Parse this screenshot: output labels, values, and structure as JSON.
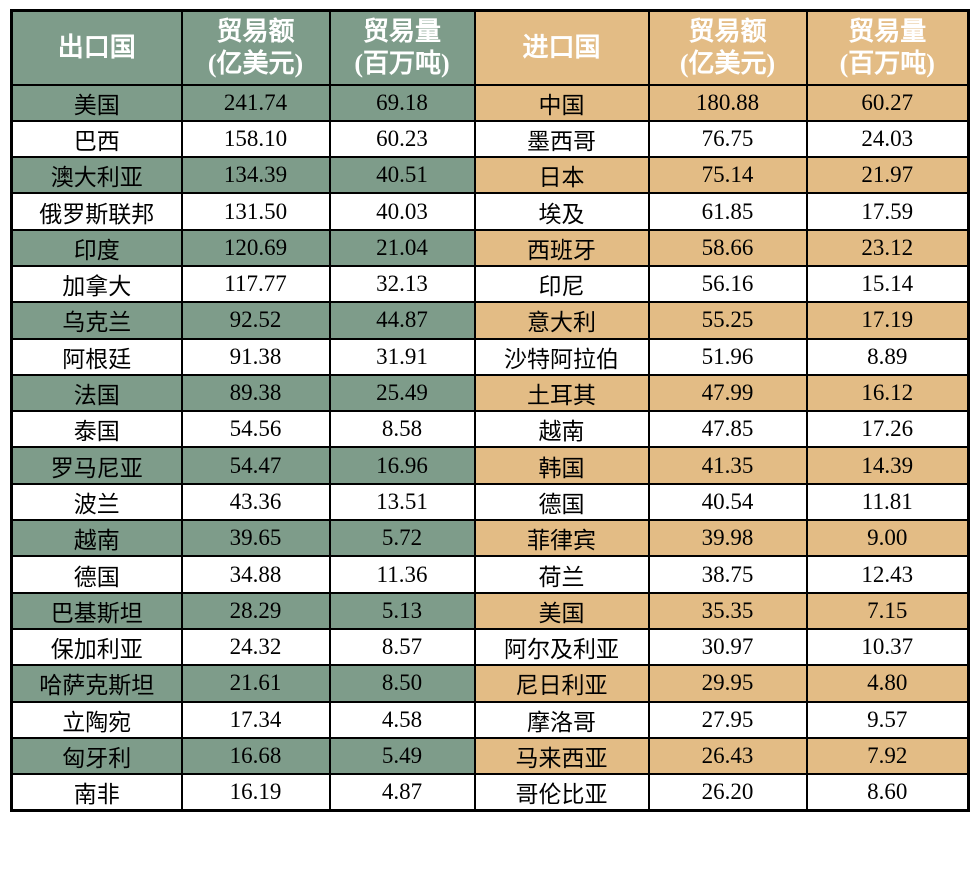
{
  "colors": {
    "green_bg": "#7E9C8A",
    "tan_bg": "#E3BC85",
    "border": "#000000",
    "header_text": "#FFFFFF",
    "body_text": "#000000",
    "page_bg": "#FFFFFF"
  },
  "header": {
    "export_country": "出口国",
    "export_value": "贸易额\n(亿美元)",
    "export_volume": "贸易量\n(百万吨)",
    "import_country": "进口国",
    "import_value": "贸易额\n(亿美元)",
    "import_volume": "贸易量\n(百万吨)"
  },
  "chart_data": {
    "type": "table",
    "columns": [
      "出口国",
      "贸易额(亿美元)",
      "贸易量(百万吨)",
      "进口国",
      "贸易额(亿美元)",
      "贸易量(百万吨)"
    ],
    "rows": [
      [
        "美国",
        "241.74",
        "69.18",
        "中国",
        "180.88",
        "60.27"
      ],
      [
        "巴西",
        "158.10",
        "60.23",
        "墨西哥",
        "76.75",
        "24.03"
      ],
      [
        "澳大利亚",
        "134.39",
        "40.51",
        "日本",
        "75.14",
        "21.97"
      ],
      [
        "俄罗斯联邦",
        "131.50",
        "40.03",
        "埃及",
        "61.85",
        "17.59"
      ],
      [
        "印度",
        "120.69",
        "21.04",
        "西班牙",
        "58.66",
        "23.12"
      ],
      [
        "加拿大",
        "117.77",
        "32.13",
        "印尼",
        "56.16",
        "15.14"
      ],
      [
        "乌克兰",
        "92.52",
        "44.87",
        "意大利",
        "55.25",
        "17.19"
      ],
      [
        "阿根廷",
        "91.38",
        "31.91",
        "沙特阿拉伯",
        "51.96",
        "8.89"
      ],
      [
        "法国",
        "89.38",
        "25.49",
        "土耳其",
        "47.99",
        "16.12"
      ],
      [
        "泰国",
        "54.56",
        "8.58",
        "越南",
        "47.85",
        "17.26"
      ],
      [
        "罗马尼亚",
        "54.47",
        "16.96",
        "韩国",
        "41.35",
        "14.39"
      ],
      [
        "波兰",
        "43.36",
        "13.51",
        "德国",
        "40.54",
        "11.81"
      ],
      [
        "越南",
        "39.65",
        "5.72",
        "菲律宾",
        "39.98",
        "9.00"
      ],
      [
        "德国",
        "34.88",
        "11.36",
        "荷兰",
        "38.75",
        "12.43"
      ],
      [
        "巴基斯坦",
        "28.29",
        "5.13",
        "美国",
        "35.35",
        "7.15"
      ],
      [
        "保加利亚",
        "24.32",
        "8.57",
        "阿尔及利亚",
        "30.97",
        "10.37"
      ],
      [
        "哈萨克斯坦",
        "21.61",
        "8.50",
        "尼日利亚",
        "29.95",
        "4.80"
      ],
      [
        "立陶宛",
        "17.34",
        "4.58",
        "摩洛哥",
        "27.95",
        "9.57"
      ],
      [
        "匈牙利",
        "16.68",
        "5.49",
        "马来西亚",
        "26.43",
        "7.92"
      ],
      [
        "南非",
        "16.19",
        "4.87",
        "哥伦比亚",
        "26.20",
        "8.60"
      ]
    ]
  }
}
